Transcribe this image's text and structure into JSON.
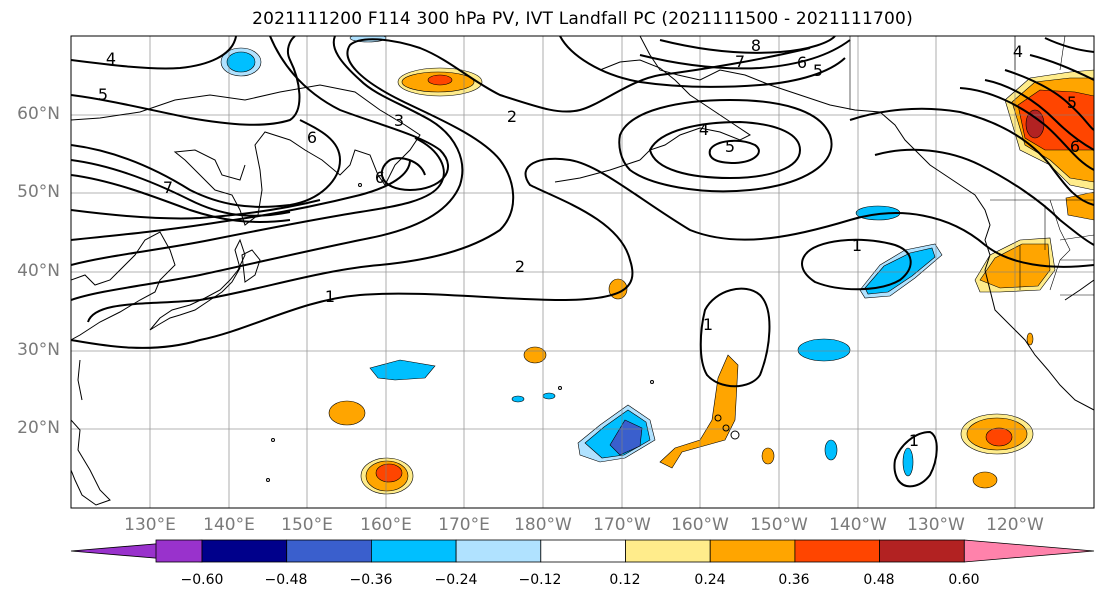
{
  "title": "2021111200 F114 300 hPa PV, IVT Landfall PC (2021111500 - 2021111700)",
  "lat_labels": [
    "60°N",
    "50°N",
    "40°N",
    "30°N",
    "20°N"
  ],
  "lon_labels": [
    "130°E",
    "140°E",
    "150°E",
    "160°E",
    "170°E",
    "180°W",
    "170°W",
    "160°W",
    "150°W",
    "140°W",
    "130°W",
    "120°W"
  ],
  "pv_contour_labels": [
    "4",
    "5",
    "6",
    "3",
    "6",
    "2",
    "4",
    "5",
    "8",
    "7",
    "6",
    "5",
    "4",
    "5",
    "6",
    "1",
    "2",
    "1",
    "1",
    "1",
    "7"
  ],
  "colorbar": {
    "tick_labels": [
      "−0.60",
      "−0.48",
      "−0.36",
      "−0.24",
      "−0.12",
      "0.12",
      "0.24",
      "0.36",
      "0.48",
      "0.60"
    ],
    "colors": [
      "#9932cc",
      "#00008b",
      "#3a5fcd",
      "#00bfff",
      "#b0e2ff",
      "#ffffff",
      "#ffec8b",
      "#ffa500",
      "#ff4500",
      "#b22222",
      "#ff82ab"
    ]
  }
}
